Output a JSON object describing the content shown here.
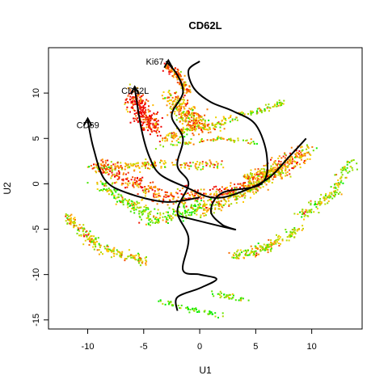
{
  "chart_data": {
    "type": "scatter",
    "title": "CD62L",
    "xlabel": "U1",
    "ylabel": "U2",
    "xlim": [
      -13.5,
      14.5
    ],
    "ylim": [
      -16,
      15
    ],
    "xticks": [
      -10,
      -5,
      0,
      5,
      10
    ],
    "yticks": [
      -15,
      -10,
      -5,
      0,
      5,
      10
    ],
    "grid": false,
    "legend": "none",
    "color_scale": {
      "low": "#00ee00",
      "mid": "#ffd000",
      "high": "#ee0000"
    },
    "clusters": [
      {
        "curve": [
          [
            -3,
            13
          ],
          [
            -2,
            12
          ],
          [
            -1,
            10
          ]
        ],
        "width": 0.45,
        "count": 120,
        "value": 0.75
      },
      {
        "curve": [
          [
            -6,
            10
          ],
          [
            -5,
            7.5
          ],
          [
            -4,
            6
          ]
        ],
        "width": 0.9,
        "count": 260,
        "value": 0.95
      },
      {
        "curve": [
          [
            -2.5,
            9.5
          ],
          [
            -1.5,
            8
          ],
          [
            0,
            6.5
          ]
        ],
        "width": 1.0,
        "count": 260,
        "value": 0.6
      },
      {
        "curve": [
          [
            -3,
            5
          ],
          [
            -1,
            6
          ],
          [
            2,
            6.5
          ]
        ],
        "width": 0.6,
        "count": 140,
        "value": 0.55
      },
      {
        "curve": [
          [
            2,
            7
          ],
          [
            5,
            8
          ],
          [
            7.5,
            9
          ]
        ],
        "width": 0.35,
        "count": 80,
        "value": 0.3
      },
      {
        "curve": [
          [
            -10,
            1.8
          ],
          [
            -3,
            2.2
          ],
          [
            2,
            2
          ]
        ],
        "width": 0.45,
        "count": 180,
        "value": 0.5
      },
      {
        "curve": [
          [
            -4,
            4
          ],
          [
            2,
            5
          ],
          [
            5,
            4.5
          ]
        ],
        "width": 0.3,
        "count": 70,
        "value": 0.45
      },
      {
        "curve": [
          [
            -9,
            2
          ],
          [
            -3,
            -1.5
          ],
          [
            3,
            -1
          ],
          [
            9,
            3
          ]
        ],
        "width": 0.9,
        "count": 500,
        "value": 0.8
      },
      {
        "curve": [
          [
            -9,
            0
          ],
          [
            -4,
            -4
          ],
          [
            0,
            -2.5
          ]
        ],
        "width": 0.8,
        "count": 280,
        "value": 0.25
      },
      {
        "curve": [
          [
            0,
            -3
          ],
          [
            4,
            -1
          ],
          [
            8,
            2.5
          ],
          [
            10,
            4
          ]
        ],
        "width": 0.8,
        "count": 340,
        "value": 0.5
      },
      {
        "curve": [
          [
            -12,
            -3.5
          ],
          [
            -9,
            -7
          ],
          [
            -5,
            -8.5
          ]
        ],
        "width": 0.55,
        "count": 200,
        "value": 0.45
      },
      {
        "curve": [
          [
            3,
            -8
          ],
          [
            6,
            -7
          ],
          [
            9,
            -5
          ]
        ],
        "width": 0.6,
        "count": 180,
        "value": 0.4
      },
      {
        "curve": [
          [
            9,
            -3.5
          ],
          [
            12,
            -1
          ],
          [
            13.5,
            2.5
          ]
        ],
        "width": 0.55,
        "count": 150,
        "value": 0.35
      },
      {
        "curve": [
          [
            -3.5,
            -13
          ],
          [
            0,
            -14
          ],
          [
            2,
            -14.5
          ]
        ],
        "width": 0.3,
        "count": 60,
        "value": 0.1
      },
      {
        "curve": [
          [
            1,
            -12
          ],
          [
            3,
            -12.5
          ],
          [
            4,
            -12.8
          ]
        ],
        "width": 0.3,
        "count": 40,
        "value": 0.25
      },
      {
        "curve": [
          [
            4,
            0.5
          ],
          [
            6,
            1.5
          ],
          [
            8,
            1
          ]
        ],
        "width": 0.45,
        "count": 80,
        "value": 0.5
      }
    ],
    "trajectories": [
      {
        "points": [
          [
            0,
            13.5
          ],
          [
            -1,
            12.5
          ],
          [
            -0.5,
            10.5
          ],
          [
            1,
            9
          ],
          [
            3,
            8
          ],
          [
            5,
            6.5
          ],
          [
            6,
            3
          ],
          [
            5.5,
            0
          ],
          [
            2,
            -1
          ],
          [
            1,
            -3
          ],
          [
            2,
            -4.5
          ],
          [
            3,
            -5
          ],
          [
            -2,
            -3.5
          ]
        ]
      },
      {
        "points": [
          [
            -3,
            13.5
          ],
          [
            -2,
            12
          ],
          [
            -1.5,
            10
          ],
          [
            -2.5,
            7.5
          ],
          [
            -1.5,
            5
          ],
          [
            -2,
            2
          ],
          [
            -1,
            0
          ],
          [
            -2,
            -3
          ],
          [
            -1,
            -6
          ],
          [
            -1.5,
            -9.5
          ],
          [
            0,
            -10
          ],
          [
            1.5,
            -10.5
          ],
          [
            0,
            -11.5
          ],
          [
            -2,
            -12.5
          ],
          [
            -2,
            -14
          ]
        ]
      },
      {
        "points": [
          [
            -5.8,
            10.5
          ],
          [
            -5.2,
            6
          ],
          [
            -4.5,
            3
          ],
          [
            -3.5,
            1
          ],
          [
            -1,
            -0.5
          ],
          [
            1,
            -1.5
          ],
          [
            3,
            -1.2
          ],
          [
            6,
            0.5
          ],
          [
            8,
            3
          ],
          [
            9.5,
            5
          ]
        ]
      },
      {
        "points": [
          [
            -10,
            7
          ],
          [
            -9.5,
            4
          ],
          [
            -8.5,
            0.5
          ],
          [
            -6.5,
            -1
          ],
          [
            -3,
            -2
          ],
          [
            0,
            -1.5
          ]
        ]
      }
    ],
    "annotations": [
      {
        "text": "Ki67",
        "x": -4.8,
        "y": 13.5
      },
      {
        "text": "CD62L",
        "x": -7,
        "y": 10.3
      },
      {
        "text": "CD69",
        "x": -11,
        "y": 6.5
      }
    ]
  }
}
